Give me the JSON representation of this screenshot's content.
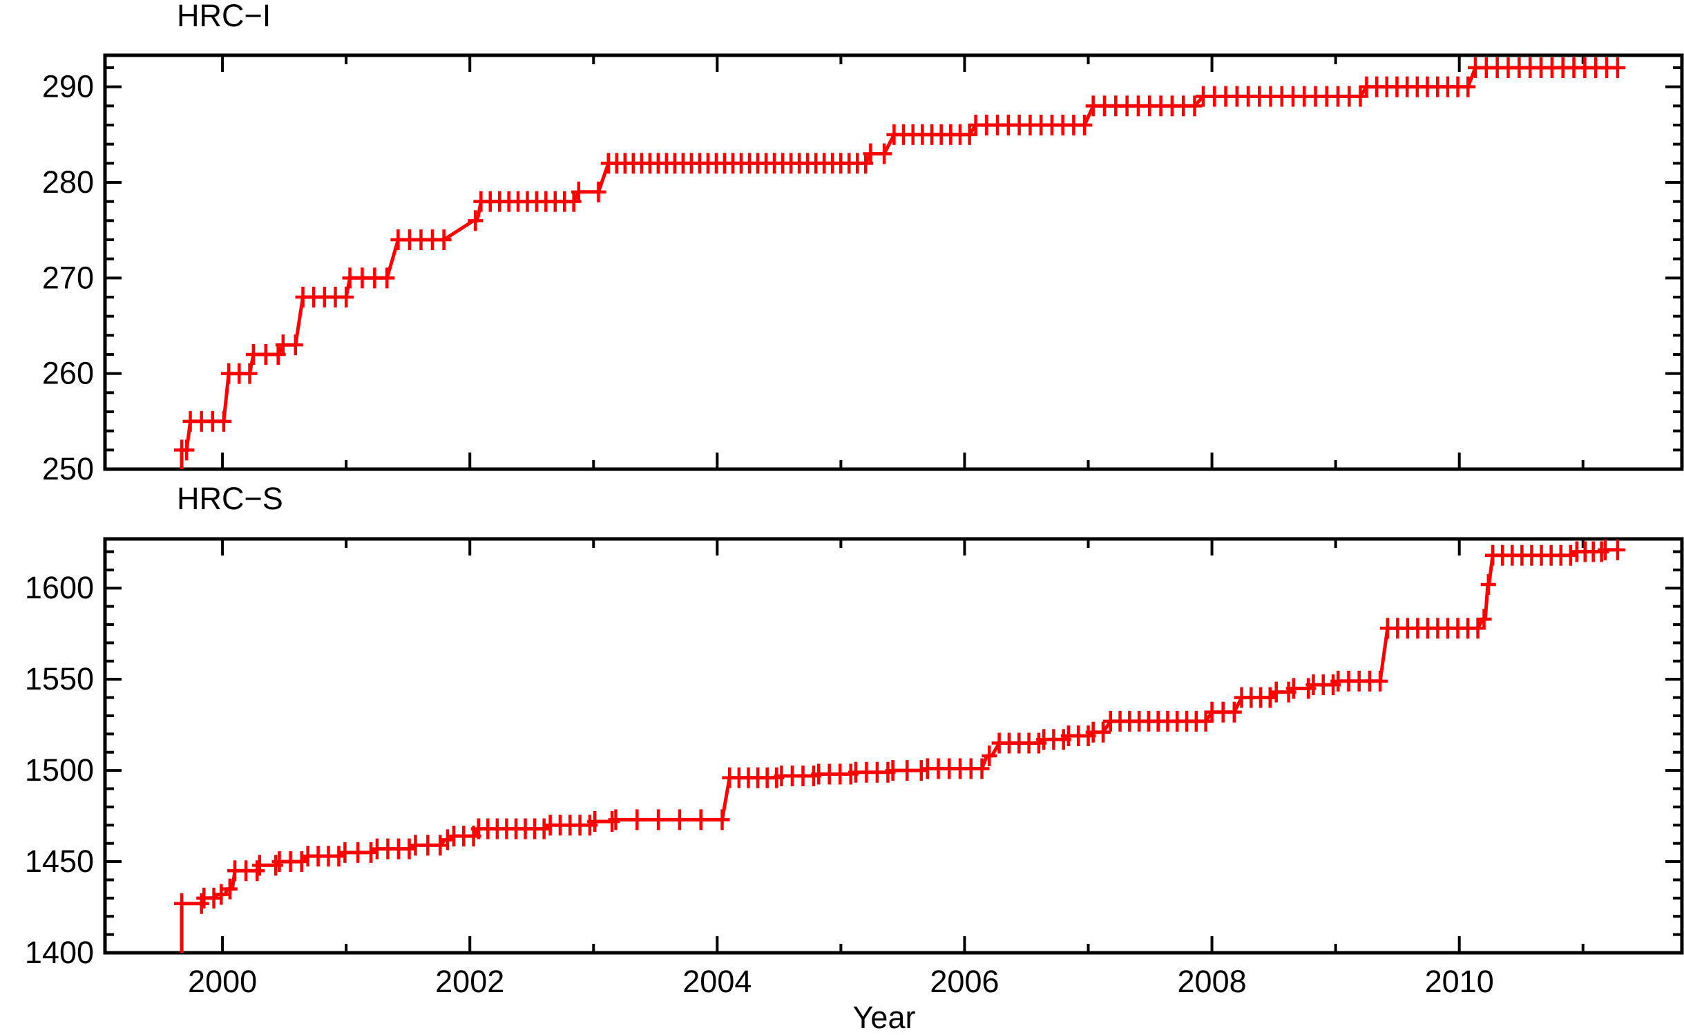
{
  "figure": {
    "background": "#ffffff",
    "axis_color": "#000000",
    "series_color": "#ff0000",
    "marker_glyph": "+"
  },
  "chart_data": [
    {
      "type": "line",
      "title": "HRC−I",
      "xlabel": "",
      "ylabel": "",
      "line_color": "#ff0000",
      "marker": "plus",
      "grid": false,
      "legend": "none",
      "xlim": [
        1999.05,
        2011.8
      ],
      "ylim": [
        250,
        293.3
      ],
      "yticks_major": [
        250,
        260,
        270,
        280,
        290
      ],
      "ytick_minor_step": 2,
      "xticks_major": [
        2000,
        2002,
        2004,
        2006,
        2008,
        2010
      ],
      "xticks_minor": [
        2001,
        2003,
        2005,
        2007,
        2009,
        2011
      ],
      "x_labels_visible": false,
      "start": {
        "year": 1999.67,
        "baseline_value": 250
      },
      "steps": [
        [
          1999.67,
          1999.71,
          252,
          2
        ],
        [
          1999.74,
          2000.01,
          255,
          4
        ],
        [
          2000.05,
          2000.22,
          260,
          3
        ],
        [
          2000.25,
          2000.45,
          262,
          3
        ],
        [
          2000.49,
          2000.59,
          263,
          2
        ],
        [
          2000.65,
          2001.0,
          268,
          5
        ],
        [
          2001.03,
          2001.33,
          270,
          4
        ],
        [
          2001.42,
          2001.79,
          274,
          5
        ],
        [
          2002.03,
          2002.06,
          276,
          1
        ],
        [
          2002.09,
          2002.84,
          278,
          11
        ],
        [
          2002.88,
          2003.04,
          279,
          2
        ],
        [
          2003.12,
          2005.2,
          282,
          32
        ],
        [
          2005.24,
          2005.35,
          283,
          2
        ],
        [
          2005.43,
          2006.04,
          285,
          9
        ],
        [
          2006.09,
          2006.97,
          286,
          11
        ],
        [
          2007.04,
          2007.86,
          288,
          10
        ],
        [
          2007.93,
          2009.2,
          289,
          15
        ],
        [
          2009.25,
          2010.07,
          290,
          11
        ],
        [
          2010.13,
          2011.28,
          292,
          14
        ]
      ]
    },
    {
      "type": "line",
      "title": "HRC−S",
      "xlabel": "Year",
      "ylabel": "",
      "line_color": "#ff0000",
      "marker": "plus",
      "grid": false,
      "legend": "none",
      "xlim": [
        1999.05,
        2011.8
      ],
      "ylim": [
        1400,
        1627
      ],
      "yticks_major": [
        1400,
        1450,
        1500,
        1550,
        1600
      ],
      "ytick_minor_step": 10,
      "xticks_major": [
        2000,
        2002,
        2004,
        2006,
        2008,
        2010
      ],
      "xticks_minor": [
        2001,
        2003,
        2005,
        2007,
        2009,
        2011
      ],
      "x_labels_visible": true,
      "start": {
        "year": 1999.67,
        "baseline_value": 1400
      },
      "steps": [
        [
          1999.67,
          1999.83,
          1427,
          2
        ],
        [
          1999.85,
          1999.93,
          1430,
          2
        ],
        [
          1999.96,
          2000.02,
          1432,
          1
        ],
        [
          2000.04,
          2000.08,
          1435,
          1
        ],
        [
          2000.1,
          2000.28,
          1445,
          3
        ],
        [
          2000.3,
          2000.43,
          1448,
          2
        ],
        [
          2000.46,
          2000.64,
          1450,
          3
        ],
        [
          2000.69,
          2000.94,
          1453,
          4
        ],
        [
          2000.99,
          2001.2,
          1455,
          3
        ],
        [
          2001.25,
          2001.51,
          1457,
          4
        ],
        [
          2001.56,
          2001.76,
          1459,
          3
        ],
        [
          2001.8,
          2001.84,
          1462,
          1
        ],
        [
          2001.87,
          2002.03,
          1464,
          3
        ],
        [
          2002.07,
          2002.6,
          1468,
          8
        ],
        [
          2002.65,
          2002.97,
          1470,
          5
        ],
        [
          2003.01,
          2003.15,
          1472,
          2
        ],
        [
          2003.18,
          2004.04,
          1473,
          6
        ],
        [
          2004.1,
          2004.48,
          1496,
          6
        ],
        [
          2004.52,
          2004.78,
          1497,
          4
        ],
        [
          2004.82,
          2005.08,
          1498,
          4
        ],
        [
          2005.12,
          2005.38,
          1499,
          4
        ],
        [
          2005.42,
          2005.65,
          1500,
          3
        ],
        [
          2005.7,
          2006.14,
          1501,
          6
        ],
        [
          2006.18,
          2006.22,
          1508,
          1
        ],
        [
          2006.28,
          2006.6,
          1515,
          5
        ],
        [
          2006.64,
          2006.8,
          1517,
          3
        ],
        [
          2006.84,
          2007.0,
          1519,
          3
        ],
        [
          2007.04,
          2007.12,
          1521,
          2
        ],
        [
          2007.18,
          2007.95,
          1527,
          11
        ],
        [
          2008.0,
          2008.18,
          1532,
          3
        ],
        [
          2008.24,
          2008.47,
          1540,
          4
        ],
        [
          2008.52,
          2008.62,
          1543,
          2
        ],
        [
          2008.66,
          2008.78,
          1545,
          2
        ],
        [
          2008.82,
          2008.98,
          1547,
          3
        ],
        [
          2009.02,
          2009.36,
          1549,
          5
        ],
        [
          2009.42,
          2010.15,
          1578,
          10
        ],
        [
          2010.19,
          2010.21,
          1583,
          1
        ],
        [
          2010.23,
          2010.24,
          1602,
          1
        ],
        [
          2010.27,
          2010.9,
          1618,
          9
        ],
        [
          2010.95,
          2011.15,
          1620,
          4
        ],
        [
          2011.18,
          2011.28,
          1621,
          2
        ]
      ]
    }
  ]
}
